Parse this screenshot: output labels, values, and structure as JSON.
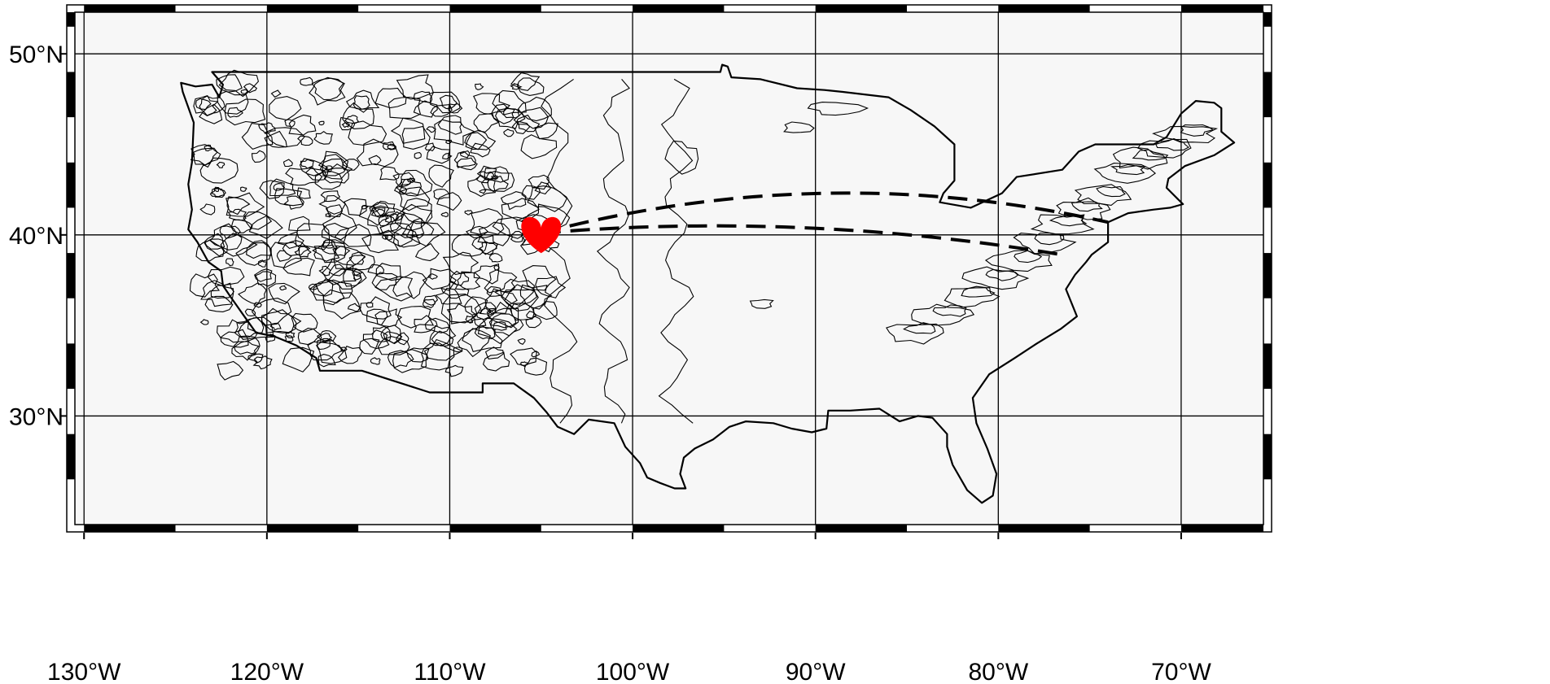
{
  "map": {
    "extent": {
      "lon_min": -130.5,
      "lon_max": -65.5,
      "lat_min": 24,
      "lat_max": 52.3
    },
    "colors": {
      "land": "#f7f7f7",
      "ocean": "#ffffff",
      "coast": "#000000",
      "grid": "#000000",
      "marker": "#ff0000",
      "route": "#000000"
    },
    "x_ticks": [
      {
        "lon": -130,
        "label": "130°W"
      },
      {
        "lon": -120,
        "label": "120°W"
      },
      {
        "lon": -110,
        "label": "110°W"
      },
      {
        "lon": -100,
        "label": "100°W"
      },
      {
        "lon": -90,
        "label": "90°W"
      },
      {
        "lon": -80,
        "label": "80°W"
      },
      {
        "lon": -70,
        "label": "70°W"
      }
    ],
    "y_ticks": [
      {
        "lat": 30,
        "label": "30°N"
      },
      {
        "lat": 40,
        "label": "40°N"
      },
      {
        "lat": 50,
        "label": "50°N"
      }
    ],
    "marker": {
      "name": "heart",
      "icon": "heart-icon",
      "lon": -105.0,
      "lat": 40.1
    },
    "routes": [
      {
        "from": [
          -105.0,
          40.1
        ],
        "to": [
          -74.0,
          40.7
        ],
        "peak_lat": 42.3
      },
      {
        "from": [
          -105.0,
          40.1
        ],
        "to": [
          -76.5,
          38.9
        ],
        "peak_lat": 40.4
      }
    ]
  }
}
